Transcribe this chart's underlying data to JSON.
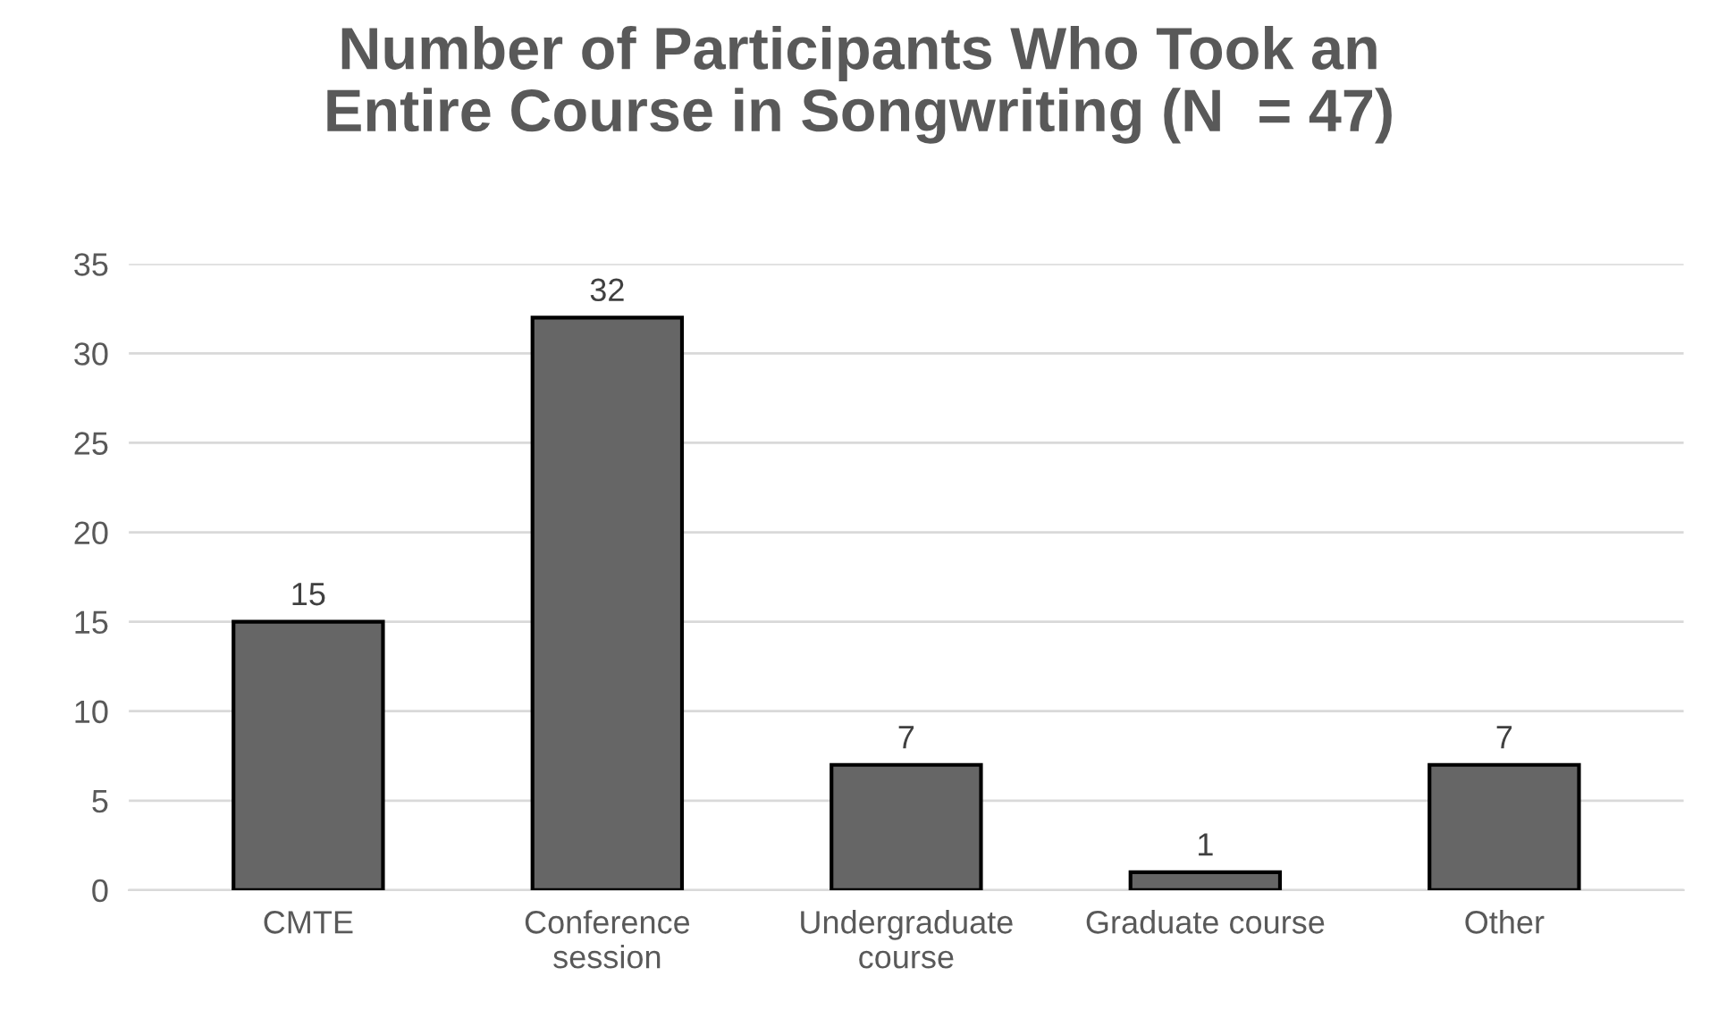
{
  "chart_data": {
    "type": "bar",
    "title": "Number of Participants Who Took an\nEntire Course in Songwriting (N  = 47)",
    "categories": [
      "CMTE",
      "Conference\nsession",
      "Undergraduate\ncourse",
      "Graduate course",
      "Other"
    ],
    "values": [
      15,
      32,
      7,
      1,
      7
    ],
    "color": "#666666",
    "ylim": [
      0,
      35
    ],
    "yticks": [
      0,
      5,
      10,
      15,
      20,
      25,
      30,
      35
    ],
    "grid": "y",
    "data_labels": true
  }
}
